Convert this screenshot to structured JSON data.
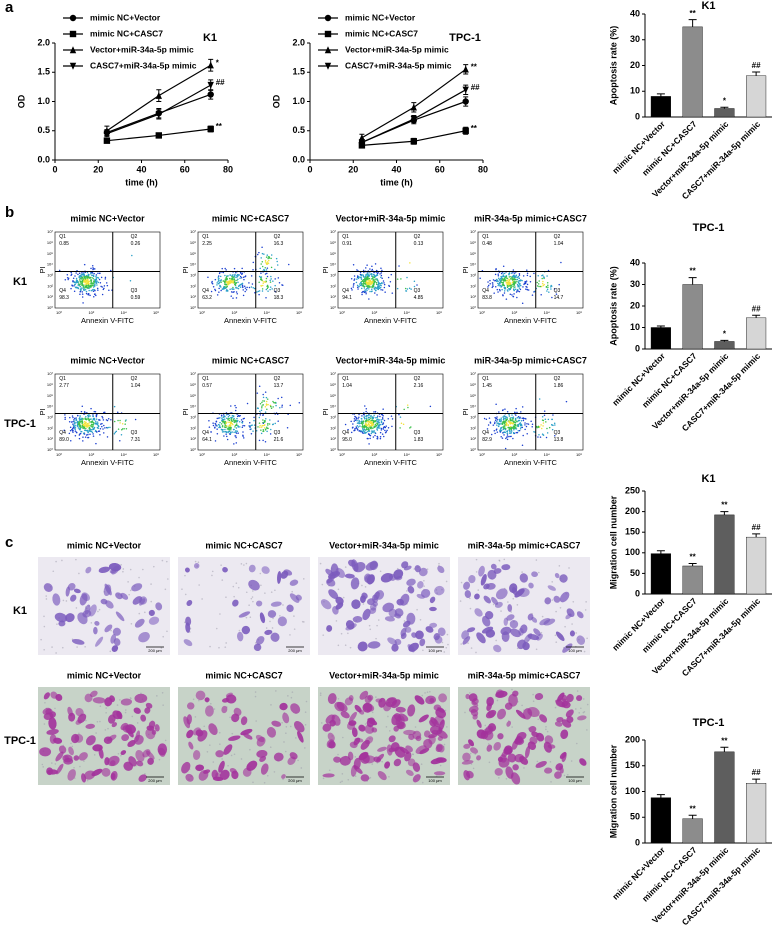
{
  "panel_labels": [
    "a",
    "b",
    "c"
  ],
  "chart_data": [
    {
      "type": "line",
      "title": "K1",
      "xlabel": "time (h)",
      "ylabel": "OD",
      "x": [
        24,
        48,
        72
      ],
      "xlim": [
        0,
        80
      ],
      "xticks": [
        0,
        20,
        40,
        60,
        80
      ],
      "ylim": [
        0,
        2
      ],
      "yticks": [
        {
          "value": 0,
          "label": "0.0"
        },
        {
          "value": 0.5,
          "label": "0.5"
        },
        {
          "value": 1,
          "label": "1.0"
        },
        {
          "value": 1.5,
          "label": "1.5"
        },
        {
          "value": 2,
          "label": "2.0"
        }
      ],
      "legend": "upper left",
      "series": [
        {
          "name": "mimic NC+Vector",
          "color": "#000000",
          "marker": "circle",
          "values": [
            0.47,
            0.8,
            1.12
          ],
          "errors": [
            0.05,
            0.08,
            0.08
          ]
        },
        {
          "name": "mimic NC+CASC7",
          "color": "#000000",
          "marker": "square",
          "values": [
            0.33,
            0.42,
            0.53
          ],
          "errors": [
            0.03,
            0.04,
            0.05
          ],
          "end_label": "**"
        },
        {
          "name": "Vector+miR-34a-5p mimic",
          "color": "#000000",
          "marker": "triangle-up",
          "values": [
            0.5,
            1.1,
            1.62
          ],
          "errors": [
            0.08,
            0.1,
            0.1
          ],
          "end_label": "*"
        },
        {
          "name": "CASC7+miR-34a-5p mimic",
          "color": "#000000",
          "marker": "triangle-down",
          "values": [
            0.45,
            0.78,
            1.28
          ],
          "errors": [
            0.05,
            0.08,
            0.09
          ],
          "end_label": "##"
        }
      ]
    },
    {
      "type": "line",
      "title": "TPC-1",
      "xlabel": "time (h)",
      "ylabel": "OD",
      "x": [
        24,
        48,
        72
      ],
      "xlim": [
        0,
        80
      ],
      "xticks": [
        0,
        20,
        40,
        60,
        80
      ],
      "ylim": [
        0,
        2
      ],
      "yticks": [
        {
          "value": 0,
          "label": "0.0"
        },
        {
          "value": 0.5,
          "label": "0.5"
        },
        {
          "value": 1,
          "label": "1.0"
        },
        {
          "value": 1.5,
          "label": "1.5"
        },
        {
          "value": 2,
          "label": "2.0"
        }
      ],
      "legend": "upper left",
      "series": [
        {
          "name": "mimic NC+Vector",
          "color": "#000000",
          "marker": "circle",
          "values": [
            0.3,
            0.68,
            1.0
          ],
          "errors": [
            0.05,
            0.06,
            0.08
          ]
        },
        {
          "name": "mimic NC+CASC7",
          "color": "#000000",
          "marker": "square",
          "values": [
            0.25,
            0.32,
            0.5
          ],
          "errors": [
            0.03,
            0.05,
            0.06
          ],
          "end_label": "**"
        },
        {
          "name": "Vector+miR-34a-5p mimic",
          "color": "#000000",
          "marker": "triangle-up",
          "values": [
            0.38,
            0.9,
            1.55
          ],
          "errors": [
            0.06,
            0.08,
            0.08
          ],
          "end_label": "**"
        },
        {
          "name": "CASC7+miR-34a-5p mimic",
          "color": "#000000",
          "marker": "triangle-down",
          "values": [
            0.3,
            0.7,
            1.2
          ],
          "errors": [
            0.05,
            0.06,
            0.08
          ],
          "end_label": "##"
        }
      ]
    },
    {
      "type": "bar",
      "title": "K1",
      "ylabel": "Apoptosis rate (%)",
      "categories": [
        "mimic NC+Vector",
        "mimic NC+CASC7",
        "Vector+miR-34a-5p mimic",
        "CASC7+miR-34a-5p mimic"
      ],
      "values": [
        8,
        35,
        3.3,
        16
      ],
      "errors": [
        1,
        2.8,
        0.5,
        1.5
      ],
      "colors": [
        "#000000",
        "#8c8c8c",
        "#5e5e5e",
        "#d6d6d6"
      ],
      "annotations": [
        null,
        "**",
        "*",
        "##"
      ],
      "ylim": [
        0,
        40
      ],
      "yticks": [
        0,
        10,
        20,
        30,
        40
      ]
    },
    {
      "type": "bar",
      "title": "TPC-1",
      "ylabel": "Apoptosis rate (%)",
      "categories": [
        "mimic NC+Vector",
        "mimic NC+CASC7",
        "Vector+miR-34a-5p mimic",
        "CASC7+miR-34a-5p mimic"
      ],
      "values": [
        10,
        30,
        3.5,
        14.5
      ],
      "errors": [
        0.7,
        3.2,
        0.5,
        1.2
      ],
      "colors": [
        "#000000",
        "#8c8c8c",
        "#5e5e5e",
        "#d6d6d6"
      ],
      "annotations": [
        null,
        "**",
        "*",
        "##"
      ],
      "ylim": [
        0,
        40
      ],
      "yticks": [
        0,
        10,
        20,
        30,
        40
      ]
    },
    {
      "type": "bar",
      "title": "K1",
      "ylabel": "Migration cell number",
      "categories": [
        "mimic NC+Vector",
        "mimic NC+CASC7",
        "Vector+miR-34a-5p mimic",
        "CASC7+miR-34a-5p mimic"
      ],
      "values": [
        98,
        68,
        192,
        138
      ],
      "errors": [
        7,
        6,
        8,
        8
      ],
      "colors": [
        "#000000",
        "#8c8c8c",
        "#5e5e5e",
        "#d6d6d6"
      ],
      "annotations": [
        null,
        "**",
        "**",
        "##"
      ],
      "ylim": [
        0,
        250
      ],
      "yticks": [
        0,
        50,
        100,
        150,
        200,
        250
      ]
    },
    {
      "type": "bar",
      "title": "TPC-1",
      "ylabel": "Migration cell number",
      "categories": [
        "mimic NC+Vector",
        "mimic NC+CASC7",
        "Vector+miR-34a-5p mimic",
        "CASC7+miR-34a-5p mimic"
      ],
      "values": [
        88,
        47,
        177,
        116
      ],
      "errors": [
        6,
        7,
        9,
        8
      ],
      "colors": [
        "#000000",
        "#8c8c8c",
        "#5e5e5e",
        "#d6d6d6"
      ],
      "annotations": [
        null,
        "**",
        "**",
        "##"
      ],
      "ylim": [
        0,
        200
      ],
      "yticks": [
        0,
        50,
        100,
        150,
        200
      ]
    }
  ],
  "flow_cytometry": {
    "columns": [
      "mimic NC+Vector",
      "mimic NC+CASC7",
      "Vector+miR-34a-5p mimic",
      "miR-34a-5p mimic+CASC7"
    ],
    "quadrant_names": [
      "Q1",
      "Q2",
      "Q3",
      "Q4"
    ],
    "x_axis": "Annexin V-FITC",
    "y_axis": "PI",
    "x_ticks": [
      "10⁰",
      "10²",
      "10⁴",
      "10⁶"
    ],
    "y_ticks": [
      "10⁰",
      "10¹",
      "10²",
      "10³",
      "10⁴",
      "10⁵",
      "10⁶",
      "10⁷"
    ],
    "rows": [
      {
        "name": "K1",
        "plots": [
          [
            "0.85",
            "0.26",
            "0.59",
            "98.3"
          ],
          [
            "2.25",
            "16.3",
            "18.3",
            "63.2"
          ],
          [
            "0.91",
            "0.13",
            "4.85",
            "94.1"
          ],
          [
            "0.48",
            "1.04",
            "14.7",
            "83.8"
          ]
        ]
      },
      {
        "name": "TPC-1",
        "plots": [
          [
            "2.77",
            "1.04",
            "7.31",
            "89.0"
          ],
          [
            "0.57",
            "13.7",
            "21.6",
            "64.1"
          ],
          [
            "1.04",
            "2.16",
            "1.83",
            "95.0"
          ],
          [
            "1.45",
            "1.86",
            "13.8",
            "82.9"
          ]
        ]
      }
    ]
  },
  "migration_images": {
    "columns": [
      "mimic NC+Vector",
      "mimic NC+CASC7",
      "Vector+miR-34a-5p mimic",
      "miR-34a-5p mimic+CASC7"
    ],
    "rows": [
      {
        "name": "K1",
        "scale_bars": [
          "200 μm",
          "200 μm",
          "100 μm",
          "100 μm"
        ]
      },
      {
        "name": "TPC-1",
        "scale_bars": [
          "200 μm",
          "200 μm",
          "100 μm",
          "100 μm"
        ]
      }
    ]
  }
}
